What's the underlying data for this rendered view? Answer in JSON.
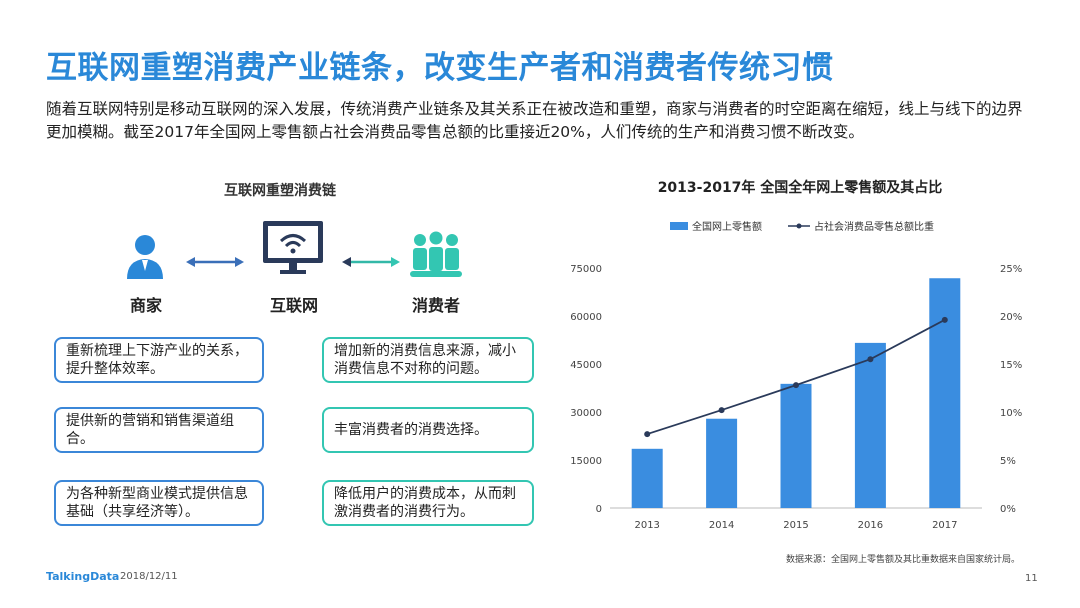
{
  "slide": {
    "title": "互联网重塑消费产业链条，改变生产者和消费者传统习惯",
    "intro": "随着互联网特别是移动互联网的深入发展，传统消费产业链条及其关系正在被改造和重塑，商家与消费者的时空距离在缩短，线上与线下的边界更加模糊。截至2017年全国网上零售额占社会消费品零售总额的比重接近20%，人们传统的生产和消费习惯不断改变。"
  },
  "diagram": {
    "title": "互联网重塑消费链",
    "nodes": [
      {
        "label": "商家",
        "icon": "merchant-person-icon",
        "color": "#2a88d8"
      },
      {
        "label": "互联网",
        "icon": "wifi-monitor-icon",
        "color": "#2a3a5a"
      },
      {
        "label": "消费者",
        "icon": "consumer-group-icon",
        "color": "#33c6b2"
      }
    ],
    "merchant_boxes": [
      "重新梳理上下游产业的关系，提升整体效率。",
      "提供新的营销和销售渠道组合。",
      "为各种新型商业模式提供信息基础（共享经济等）。"
    ],
    "consumer_boxes": [
      "增加新的消费信息来源，减小消费信息不对称的问题。",
      "丰富消费者的消费选择。",
      "降低用户的消费成本，从而刺激消费者的消费行为。"
    ]
  },
  "chart_data": {
    "type": "bar",
    "title": "2013-2017年 全国全年网上零售额及其占比",
    "categories": [
      "2013",
      "2014",
      "2015",
      "2016",
      "2017"
    ],
    "series": [
      {
        "name": "全国网上零售额",
        "type": "bar",
        "axis": "left",
        "values": [
          18500,
          27900,
          38800,
          51600,
          71800
        ],
        "color": "#3a8de0"
      },
      {
        "name": "占社会消费品零售总额比重",
        "type": "line",
        "axis": "right",
        "values": [
          7.7,
          10.2,
          12.8,
          15.5,
          19.6
        ],
        "color": "#2a3a5a"
      }
    ],
    "y_left": {
      "min": 0,
      "max": 75000,
      "ticks": [
        "0",
        "15000",
        "30000",
        "45000",
        "60000",
        "75000"
      ]
    },
    "y_right": {
      "min": 0,
      "max": 25,
      "ticks": [
        "0%",
        "5%",
        "10%",
        "15%",
        "20%",
        "25%"
      ]
    },
    "legend_position": "top"
  },
  "footer": {
    "source": "数据来源：全国网上零售额及其比重数据来自国家统计局。",
    "brand": "TalkingData",
    "date": "2018/12/11",
    "page": "11"
  }
}
